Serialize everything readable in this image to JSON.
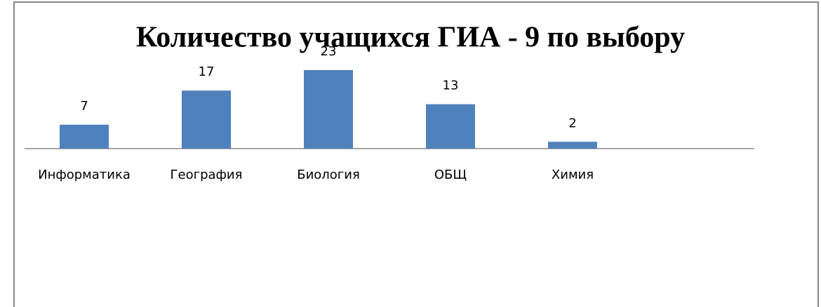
{
  "chart_data": {
    "type": "bar",
    "title": "Количество учащихся ГИА - 9 по выбору",
    "categories": [
      "Информатика",
      "География",
      "Биология",
      "ОБЩ",
      "Химия"
    ],
    "values": [
      7,
      17,
      23,
      13,
      2
    ],
    "color": "#4f81bd"
  }
}
